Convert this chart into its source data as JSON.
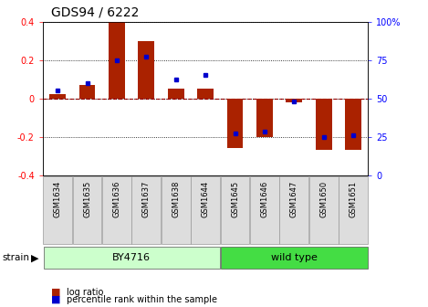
{
  "title": "GDS94 / 6222",
  "samples": [
    "GSM1634",
    "GSM1635",
    "GSM1636",
    "GSM1637",
    "GSM1638",
    "GSM1644",
    "GSM1645",
    "GSM1646",
    "GSM1647",
    "GSM1650",
    "GSM1651"
  ],
  "log_ratio": [
    0.02,
    0.07,
    0.4,
    0.3,
    0.05,
    0.05,
    -0.26,
    -0.2,
    -0.02,
    -0.27,
    -0.27
  ],
  "percentile": [
    55,
    60,
    75,
    77,
    62,
    65,
    27,
    28,
    48,
    25,
    26
  ],
  "groups": [
    {
      "label": "BY4716",
      "start": 0,
      "end": 5,
      "color": "#CCFFCC"
    },
    {
      "label": "wild type",
      "start": 6,
      "end": 10,
      "color": "#44DD44"
    }
  ],
  "bar_color": "#AA2200",
  "dot_color": "#0000CC",
  "ylim_left": [
    -0.4,
    0.4
  ],
  "ylim_right": [
    0,
    100
  ],
  "yticks_left": [
    -0.4,
    -0.2,
    0.0,
    0.2,
    0.4
  ],
  "yticks_right": [
    0,
    25,
    50,
    75,
    100
  ],
  "bg_color": "#FFFFFF",
  "strain_label": "strain",
  "legend_items": [
    "log ratio",
    "percentile rank within the sample"
  ],
  "bar_width": 0.55,
  "title_fontsize": 10,
  "tick_fontsize": 7,
  "label_fontsize": 7
}
